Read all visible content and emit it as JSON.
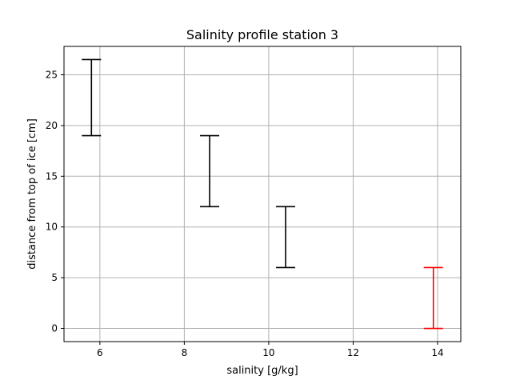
{
  "chart_data": {
    "type": "errorbar",
    "title": "Salinity profile station 3",
    "xlabel": "salinity [g/kg]",
    "ylabel": "distance from top of ice [cm]",
    "xlim": [
      5.15,
      14.55
    ],
    "ylim": [
      -1.3,
      27.8
    ],
    "xticks": [
      6,
      8,
      10,
      12,
      14
    ],
    "yticks": [
      0,
      5,
      10,
      15,
      20,
      25
    ],
    "grid": true,
    "series": [
      {
        "color": "#000000",
        "points": [
          {
            "x": 5.8,
            "y_low": 19,
            "y_high": 26.5
          },
          {
            "x": 8.6,
            "y_low": 12,
            "y_high": 19
          },
          {
            "x": 10.4,
            "y_low": 6,
            "y_high": 12
          }
        ]
      },
      {
        "color": "#ff0000",
        "points": [
          {
            "x": 13.9,
            "y_low": 0,
            "y_high": 6
          }
        ]
      }
    ]
  }
}
